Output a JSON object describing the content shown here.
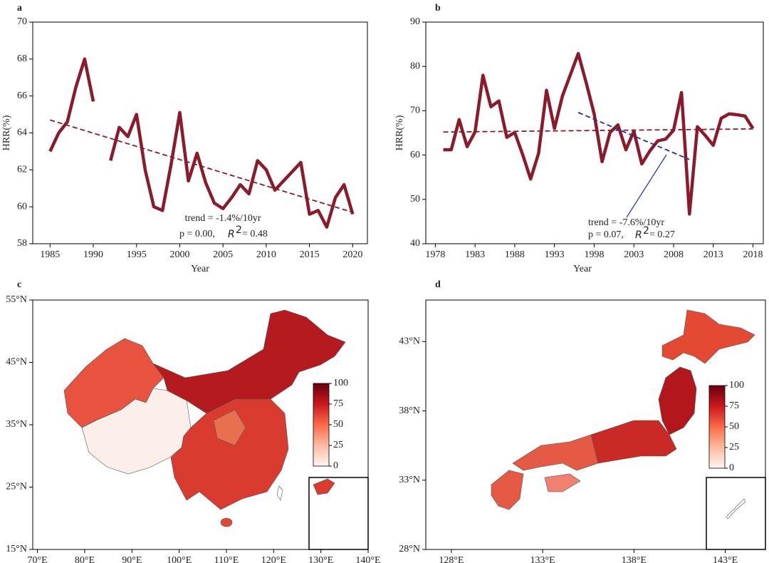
{
  "chart_data": [
    {
      "type": "line",
      "title": "a",
      "xlabel": "Year",
      "ylabel": "HRR(%)",
      "xlim": [
        1983,
        2021.7
      ],
      "ylim": [
        58,
        70
      ],
      "xticks": [
        1985,
        1990,
        1995,
        2000,
        2005,
        2010,
        2015,
        2020
      ],
      "yticks": [
        58,
        60,
        62,
        64,
        66,
        68,
        70
      ],
      "series": [
        {
          "color": "#8b1a2b",
          "style": "solid",
          "x": [
            1985,
            1986,
            1987,
            1988,
            1989,
            1990,
            1991,
            1992,
            1993,
            1994,
            1995,
            1996,
            1997,
            1998,
            1999,
            2000,
            2001,
            2002,
            2003,
            2004,
            2005,
            2006,
            2007,
            2008,
            2009,
            2010,
            2011,
            2012,
            2013,
            2014,
            2015,
            2016,
            2017,
            2018,
            2019,
            2020
          ],
          "values": [
            63.0,
            64.0,
            64.6,
            66.5,
            68.0,
            65.7,
            null,
            62.5,
            64.3,
            63.8,
            65.0,
            62.0,
            60.0,
            59.8,
            62.3,
            65.1,
            61.4,
            62.9,
            61.3,
            60.2,
            59.9,
            60.5,
            61.2,
            60.7,
            62.5,
            62.0,
            60.9,
            61.4,
            61.9,
            62.4,
            59.6,
            59.8,
            58.9,
            60.5,
            61.2,
            59.6
          ]
        },
        {
          "color": "#8b1a2b",
          "style": "dashed",
          "x": [
            1985,
            2020
          ],
          "values": [
            64.7,
            59.7
          ]
        }
      ],
      "annotation_color": "#000000",
      "annotations": [
        "trend = -1.4%/10yr",
        "p = 0.00,"
      ],
      "r2": {
        "symbol": "R",
        "exp": "2",
        "text": "= 0.48"
      }
    },
    {
      "type": "line",
      "title": "b",
      "xlabel": "Year",
      "ylabel": "HRR(%)",
      "xlim": [
        1976.8,
        2019.3
      ],
      "ylim": [
        40,
        90
      ],
      "xticks": [
        1978,
        1983,
        1988,
        1993,
        1998,
        2003,
        2008,
        2013,
        2018
      ],
      "yticks": [
        40,
        50,
        60,
        70,
        80,
        90
      ],
      "series": [
        {
          "color": "#8b1a2b",
          "style": "solid",
          "x": [
            1979,
            1980,
            1981,
            1982,
            1983,
            1984,
            1985,
            1986,
            1987,
            1988,
            1989,
            1990,
            1991,
            1992,
            1993,
            1994,
            1995,
            1996,
            1997,
            1998,
            1999,
            2000,
            2001,
            2002,
            2003,
            2004,
            2005,
            2006,
            2007,
            2008,
            2009,
            2010,
            2011,
            2012,
            2013,
            2014,
            2015,
            2016,
            2017,
            2018
          ],
          "values": [
            61.2,
            61.2,
            68.0,
            61.9,
            65.2,
            78.0,
            70.9,
            72.2,
            64.0,
            65.1,
            60.1,
            54.6,
            60.4,
            74.6,
            66.0,
            73.3,
            78.1,
            82.9,
            76.3,
            69.3,
            58.5,
            65.1,
            66.8,
            61.2,
            65.4,
            58.0,
            60.9,
            63.2,
            63.6,
            65.6,
            74.1,
            46.7,
            66.4,
            64.4,
            62.2,
            68.3,
            69.3,
            69.1,
            68.8,
            66.0
          ]
        },
        {
          "color": "#8b1a2b",
          "style": "dashed",
          "x": [
            1979,
            2018
          ],
          "values": [
            65.2,
            65.9
          ]
        },
        {
          "color": "#1f2f9f",
          "style": "dashed",
          "x": [
            1996,
            2010
          ],
          "values": [
            69.6,
            59.0
          ]
        }
      ],
      "annotation_color": "#1f2f9f",
      "annotations": [
        "trend = -7.6%/10yr",
        "p = 0.07,"
      ],
      "r2": {
        "symbol": "R",
        "exp": "2",
        "text": "= 0.27"
      }
    },
    {
      "type": "map",
      "title": "c",
      "xlim": [
        69,
        140
      ],
      "ylim": [
        15,
        55
      ],
      "xticks": [
        {
          "value": 70,
          "label": "70°E"
        },
        {
          "value": 80,
          "label": "80°E"
        },
        {
          "value": 90,
          "label": "90°E"
        },
        {
          "value": 100,
          "label": "100°E"
        },
        {
          "value": 110,
          "label": "110°E"
        },
        {
          "value": 120,
          "label": "120°E"
        },
        {
          "value": 130,
          "label": "130°E"
        },
        {
          "value": 140,
          "label": "140°E"
        }
      ],
      "yticks": [
        {
          "value": 15,
          "label": "15°N"
        },
        {
          "value": 25,
          "label": "25°N"
        },
        {
          "value": 35,
          "label": "35°N"
        },
        {
          "value": 45,
          "label": "45°N"
        },
        {
          "value": 55,
          "label": "55°N"
        }
      ],
      "colorbar": {
        "range": [
          0,
          100
        ],
        "ticks": [
          0,
          25,
          50,
          75,
          100
        ]
      }
    },
    {
      "type": "map",
      "title": "d",
      "xlim": [
        126.6,
        145.2
      ],
      "ylim": [
        28,
        46
      ],
      "xticks": [
        {
          "value": 128,
          "label": "128°E"
        },
        {
          "value": 133,
          "label": "133°E"
        },
        {
          "value": 138,
          "label": "138°E"
        },
        {
          "value": 143,
          "label": "143°E"
        }
      ],
      "yticks": [
        {
          "value": 28,
          "label": "28°N"
        },
        {
          "value": 33,
          "label": "33°N"
        },
        {
          "value": 38,
          "label": "38°N"
        },
        {
          "value": 43,
          "label": "43°N"
        }
      ],
      "colorbar": {
        "range": [
          0,
          100
        ],
        "ticks": [
          0,
          25,
          50,
          75,
          100
        ]
      }
    }
  ]
}
